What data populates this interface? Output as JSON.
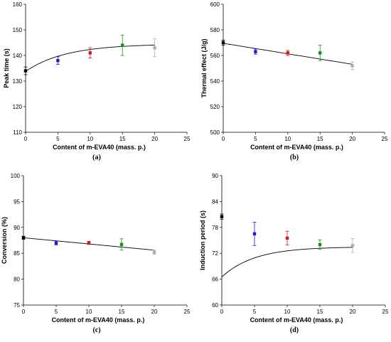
{
  "chart_data": [
    {
      "id": "a",
      "type": "scatter",
      "panel_label": "(a)",
      "xlabel": "Content of m-EVA40 (mass. p.)",
      "ylabel": "Peak time (s)",
      "xlim": [
        0,
        25
      ],
      "ylim": [
        110,
        160
      ],
      "xticks": [
        0,
        5,
        10,
        15,
        20,
        25
      ],
      "yticks": [
        110,
        120,
        130,
        140,
        150,
        160
      ],
      "x": [
        0,
        5,
        10,
        15,
        20
      ],
      "y": [
        134,
        138,
        141,
        144,
        143
      ],
      "err": [
        1.5,
        1.5,
        2,
        4,
        3.5
      ],
      "colors": [
        "#000000",
        "#1a1ad6",
        "#d61a1a",
        "#1a8c1a",
        "#b0b0b0"
      ],
      "fit": {
        "type": "exponential",
        "a": 144.5,
        "b": 10.7,
        "c": 0.16
      }
    },
    {
      "id": "b",
      "type": "scatter",
      "panel_label": "(b)",
      "xlabel": "Content of m-EVA40 (mass. p.)",
      "ylabel": "Thermal effect (J/g)",
      "xlim": [
        0,
        25
      ],
      "ylim": [
        500,
        600
      ],
      "xticks": [
        0,
        5,
        10,
        15,
        20,
        25
      ],
      "yticks": [
        500,
        520,
        540,
        560,
        580,
        600
      ],
      "x": [
        0,
        5,
        10,
        15,
        20
      ],
      "y": [
        570,
        563,
        562,
        562,
        552
      ],
      "err": [
        2,
        2,
        2,
        6,
        3
      ],
      "colors": [
        "#000000",
        "#1a1ad6",
        "#d61a1a",
        "#1a8c1a",
        "#b0b0b0"
      ],
      "fit": {
        "type": "linear",
        "a": 569.5,
        "m": -0.82
      }
    },
    {
      "id": "c",
      "type": "scatter",
      "panel_label": "(c)",
      "xlabel": "Content of m-EVA40 (mass. p.)",
      "ylabel": "Conversion (%)",
      "xlim": [
        0,
        25
      ],
      "ylim": [
        75,
        100
      ],
      "xticks": [
        0,
        5,
        10,
        15,
        20,
        25
      ],
      "yticks": [
        75,
        80,
        85,
        90,
        95,
        100
      ],
      "x": [
        0,
        5,
        10,
        15,
        20
      ],
      "y": [
        88,
        87,
        87,
        86.7,
        85.2
      ],
      "err": [
        0.3,
        0.4,
        0.3,
        1.1,
        0.4
      ],
      "colors": [
        "#000000",
        "#1a1ad6",
        "#d61a1a",
        "#1a8c1a",
        "#b0b0b0"
      ],
      "fit": {
        "type": "linear",
        "a": 88,
        "m": -0.12
      }
    },
    {
      "id": "d",
      "type": "scatter",
      "panel_label": "(d)",
      "xlabel": "Content of m-EVA40 (mass. p.)",
      "ylabel": "Induction period (s)",
      "xlim": [
        0,
        25
      ],
      "ylim": [
        60,
        90
      ],
      "xticks": [
        0,
        5,
        10,
        15,
        20,
        25
      ],
      "yticks": [
        60,
        66,
        72,
        78,
        84,
        90
      ],
      "x": [
        0,
        5,
        10,
        15,
        20
      ],
      "y": [
        80.5,
        76.5,
        75.5,
        74,
        73.8
      ],
      "err": [
        0.6,
        2.7,
        1.6,
        1.1,
        1.6
      ],
      "colors": [
        "#000000",
        "#1a1ad6",
        "#d61a1a",
        "#1a8c1a",
        "#b0b0b0"
      ],
      "fit": {
        "type": "exponential",
        "a": 73.5,
        "b": 7,
        "c": 0.2
      }
    }
  ]
}
